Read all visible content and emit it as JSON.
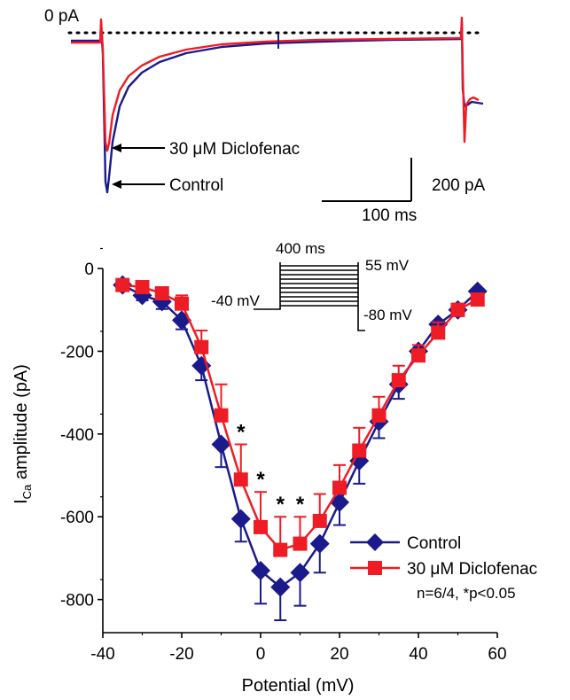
{
  "colors": {
    "control": "#1a1a8c",
    "diclofenac": "#ee1c25",
    "axis": "#000000"
  },
  "trace_panel": {
    "zero_label": "0 pA",
    "arrow_label_diclofenac": "30 μM Diclofenac",
    "arrow_label_control": "Control",
    "scale_current": "200 pA",
    "scale_time": "100 ms"
  },
  "protocol": {
    "duration_label": "400 ms",
    "hold_label": "-40 mV",
    "top_label": "55 mV",
    "return_label": "-80 mV"
  },
  "chart_data": {
    "type": "line",
    "xlabel": "Potential (mV)",
    "ylabel_main": "I",
    "ylabel_sub": "Ca",
    "ylabel_rest": " amplitude (pA)",
    "xlim": [
      -40,
      60
    ],
    "ylim": [
      -880,
      0
    ],
    "xticks": [
      "-40",
      "-20",
      "0",
      "20",
      "40",
      "60"
    ],
    "yticks": [
      "0",
      "-200",
      "-400",
      "-600",
      "-800"
    ],
    "x": [
      -35,
      -30,
      -25,
      -20,
      -15,
      -10,
      -5,
      0,
      5,
      10,
      15,
      20,
      25,
      30,
      35,
      40,
      45,
      50,
      55
    ],
    "series": [
      {
        "name": "Control",
        "marker": "diamond",
        "values": [
          -40,
          -65,
          -80,
          -125,
          -235,
          -425,
          -605,
          -730,
          -770,
          -735,
          -665,
          -565,
          -465,
          -370,
          -280,
          -200,
          -135,
          -100,
          -55
        ],
        "errors": [
          10,
          12,
          18,
          22,
          35,
          55,
          55,
          80,
          80,
          80,
          70,
          55,
          55,
          40,
          35,
          25,
          20,
          15,
          12
        ]
      },
      {
        "name": "30 μM Diclofenac",
        "marker": "square",
        "values": [
          -40,
          -45,
          -60,
          -85,
          -190,
          -355,
          -510,
          -625,
          -680,
          -665,
          -610,
          -530,
          -440,
          -355,
          -270,
          -210,
          -155,
          -100,
          -75
        ],
        "errors": [
          10,
          12,
          15,
          20,
          40,
          75,
          85,
          85,
          80,
          65,
          65,
          55,
          55,
          45,
          35,
          25,
          25,
          15,
          12
        ]
      }
    ],
    "significance_x": [
      -5,
      0,
      5,
      10
    ],
    "significance_symbol": "*",
    "stats_note": "n=6/4, *p<0.05"
  }
}
